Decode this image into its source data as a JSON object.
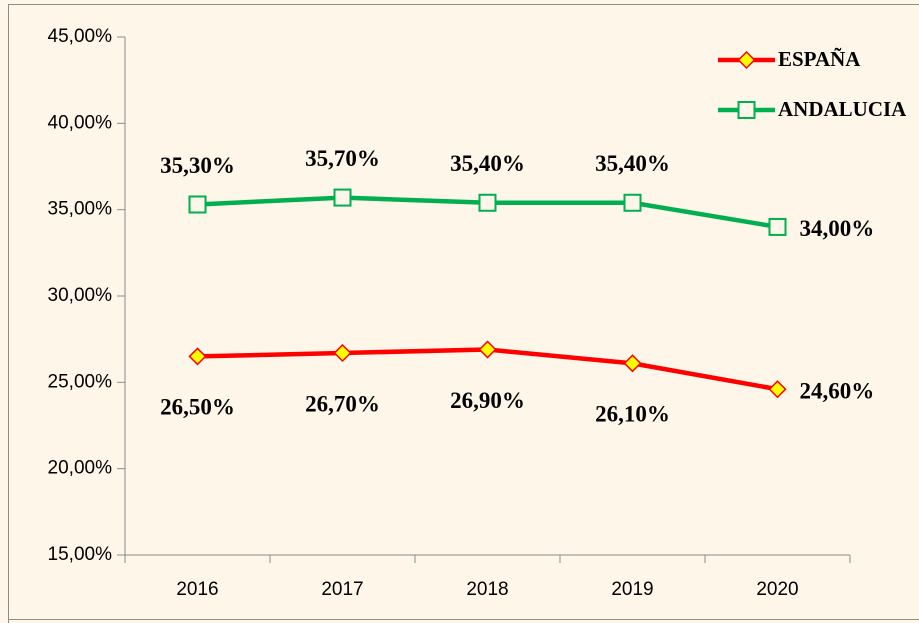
{
  "chart_data": {
    "type": "line",
    "categories": [
      "2016",
      "2017",
      "2018",
      "2019",
      "2020"
    ],
    "ylim": [
      15,
      45
    ],
    "yticks": [
      {
        "value": 15,
        "label": "15,00%"
      },
      {
        "value": 20,
        "label": "20,00%"
      },
      {
        "value": 25,
        "label": "25,00%"
      },
      {
        "value": 30,
        "label": "30,00%"
      },
      {
        "value": 35,
        "label": "35,00%"
      },
      {
        "value": 40,
        "label": "40,00%"
      },
      {
        "value": 45,
        "label": "45,00%"
      }
    ],
    "grid": false,
    "legend": "top-right",
    "series": [
      {
        "name": "ESPAÑA",
        "color": "#ff0000",
        "marker": "diamond",
        "values": [
          26.5,
          26.7,
          26.9,
          26.1,
          24.6
        ],
        "value_labels": [
          "26,50%",
          "26,70%",
          "26,90%",
          "26,10%",
          "24,60%"
        ]
      },
      {
        "name": "ANDALUCIA",
        "color": "#00b050",
        "marker": "square",
        "values": [
          35.3,
          35.7,
          35.4,
          35.4,
          34.0
        ],
        "value_labels": [
          "35,30%",
          "35,70%",
          "35,40%",
          "35,40%",
          "34,00%"
        ]
      }
    ]
  }
}
